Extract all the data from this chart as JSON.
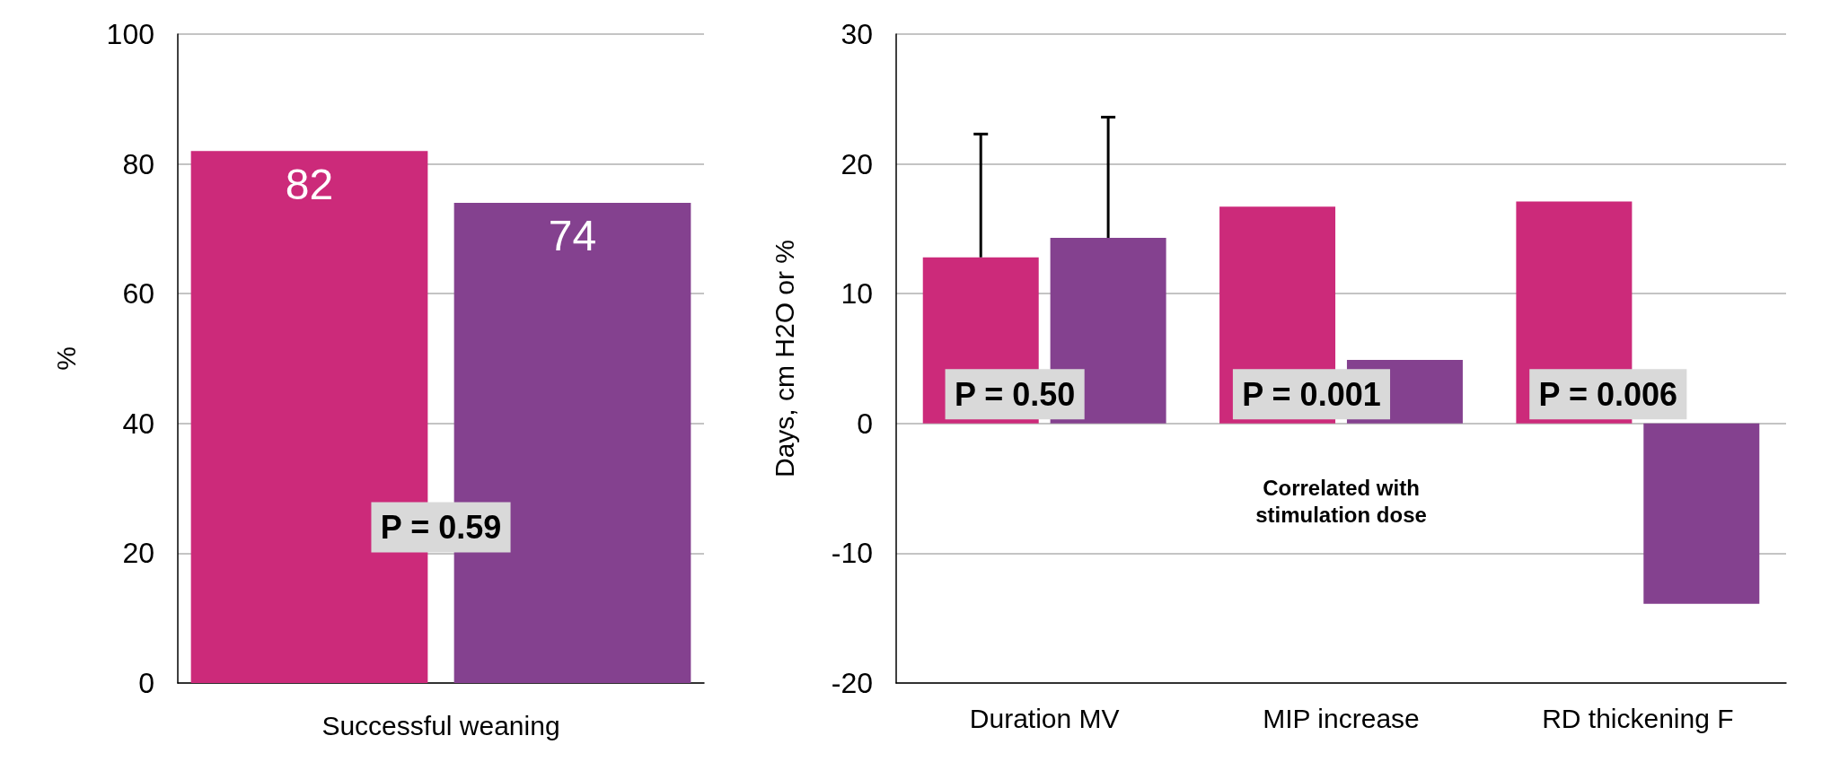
{
  "chart_data": [
    {
      "type": "bar",
      "categories": [
        null,
        null
      ],
      "xlabel": "Successful weaning",
      "ylabel": "%",
      "ylim": [
        0,
        100
      ],
      "yticks": [
        0,
        20,
        40,
        60,
        80,
        100
      ],
      "grid": "y",
      "data_labels": true,
      "values": [
        82,
        74
      ],
      "colors": [
        "#cc2a7a",
        "#84418f"
      ],
      "annotations": [
        "P = 0.59"
      ]
    },
    {
      "type": "bar",
      "categories": [
        "Duration MV",
        "MIP increase",
        "RD thickening F"
      ],
      "ylabel": "Days, cm H2O or %",
      "ylim": [
        -20,
        30
      ],
      "yticks": [
        -20,
        -10,
        0,
        10,
        20,
        30
      ],
      "grid": "y",
      "series": [
        {
          "color": "#cc2a7a",
          "values": [
            12.8,
            16.7,
            17.1
          ],
          "errors": [
            [
              12.8,
              22.3
            ],
            null,
            null
          ]
        },
        {
          "color": "#84418f",
          "values": [
            14.3,
            4.9,
            -13.9
          ],
          "errors": [
            [
              14.3,
              23.6
            ],
            null,
            null
          ]
        }
      ],
      "annotations": [
        "P = 0.50",
        "P = 0.001",
        "P = 0.006",
        "Correlated with\nstimulation dose"
      ]
    }
  ]
}
